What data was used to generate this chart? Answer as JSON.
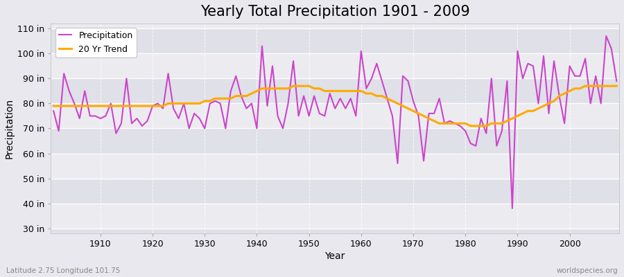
{
  "title": "Yearly Total Precipitation 1901 - 2009",
  "xlabel": "Year",
  "ylabel": "Precipitation",
  "subtitle": "Latitude 2.75 Longitude 101.75",
  "watermark": "worldspecies.org",
  "years": [
    1901,
    1902,
    1903,
    1904,
    1905,
    1906,
    1907,
    1908,
    1909,
    1910,
    1911,
    1912,
    1913,
    1914,
    1915,
    1916,
    1917,
    1918,
    1919,
    1920,
    1921,
    1922,
    1923,
    1924,
    1925,
    1926,
    1927,
    1928,
    1929,
    1930,
    1931,
    1932,
    1933,
    1934,
    1935,
    1936,
    1937,
    1938,
    1939,
    1940,
    1941,
    1942,
    1943,
    1944,
    1945,
    1946,
    1947,
    1948,
    1949,
    1950,
    1951,
    1952,
    1953,
    1954,
    1955,
    1956,
    1957,
    1958,
    1959,
    1960,
    1961,
    1962,
    1963,
    1964,
    1965,
    1966,
    1967,
    1968,
    1969,
    1970,
    1971,
    1972,
    1973,
    1974,
    1975,
    1976,
    1977,
    1978,
    1979,
    1980,
    1981,
    1982,
    1983,
    1984,
    1985,
    1986,
    1987,
    1988,
    1989,
    1990,
    1991,
    1992,
    1993,
    1994,
    1995,
    1996,
    1997,
    1998,
    1999,
    2000,
    2001,
    2002,
    2003,
    2004,
    2005,
    2006,
    2007,
    2008,
    2009
  ],
  "precipitation": [
    77,
    69,
    92,
    85,
    80,
    74,
    85,
    75,
    75,
    74,
    75,
    80,
    68,
    72,
    90,
    72,
    74,
    71,
    73,
    79,
    80,
    78,
    92,
    78,
    74,
    80,
    70,
    76,
    74,
    70,
    80,
    81,
    80,
    70,
    85,
    91,
    83,
    78,
    80,
    70,
    103,
    79,
    95,
    75,
    70,
    80,
    97,
    75,
    83,
    75,
    83,
    76,
    75,
    84,
    78,
    82,
    78,
    82,
    75,
    101,
    86,
    90,
    96,
    89,
    82,
    75,
    56,
    91,
    89,
    81,
    75,
    57,
    76,
    76,
    82,
    72,
    73,
    72,
    71,
    69,
    64,
    63,
    74,
    68,
    90,
    63,
    69,
    89,
    38,
    101,
    90,
    96,
    95,
    80,
    99,
    76,
    97,
    83,
    72,
    95,
    91,
    91,
    98,
    80,
    91,
    80,
    107,
    102,
    89
  ],
  "trend_years": [
    1901,
    1902,
    1903,
    1904,
    1905,
    1906,
    1907,
    1908,
    1909,
    1910,
    1911,
    1912,
    1913,
    1914,
    1915,
    1916,
    1917,
    1918,
    1919,
    1920,
    1921,
    1922,
    1923,
    1924,
    1925,
    1926,
    1927,
    1928,
    1929,
    1930,
    1931,
    1932,
    1933,
    1934,
    1935,
    1936,
    1937,
    1938,
    1939,
    1940,
    1941,
    1942,
    1943,
    1944,
    1945,
    1946,
    1947,
    1948,
    1949,
    1950,
    1951,
    1952,
    1953,
    1954,
    1955,
    1956,
    1957,
    1958,
    1959,
    1960,
    1961,
    1962,
    1963,
    1964,
    1965,
    1966,
    1967,
    1968,
    1969,
    1970,
    1971,
    1972,
    1973,
    1974,
    1975,
    1976,
    1977,
    1978,
    1979,
    1980,
    1981,
    1982,
    1983,
    1984,
    1985,
    1986,
    1987,
    1988,
    1989,
    1990,
    1991,
    1992,
    1993,
    1994,
    1995,
    1996,
    1997,
    1998,
    1999,
    2000,
    2001,
    2002,
    2003,
    2004,
    2005,
    2006,
    2007,
    2008,
    2009
  ],
  "trend": [
    79,
    79,
    79,
    79,
    79,
    79,
    79,
    79,
    79,
    79,
    79,
    79,
    79,
    79,
    79,
    79,
    79,
    79,
    79,
    79,
    79,
    79,
    80,
    80,
    80,
    80,
    80,
    80,
    80,
    81,
    81,
    82,
    82,
    82,
    82,
    83,
    83,
    83,
    84,
    85,
    86,
    86,
    86,
    86,
    86,
    86,
    87,
    87,
    87,
    87,
    86,
    86,
    85,
    85,
    85,
    85,
    85,
    85,
    85,
    85,
    84,
    84,
    83,
    83,
    82,
    81,
    80,
    79,
    78,
    77,
    76,
    75,
    74,
    73,
    72,
    72,
    72,
    72,
    72,
    72,
    71,
    71,
    71,
    71,
    72,
    72,
    72,
    73,
    74,
    75,
    76,
    77,
    77,
    78,
    79,
    80,
    81,
    83,
    84,
    85,
    86,
    86,
    87,
    87,
    87,
    87,
    87,
    87,
    87
  ],
  "precip_color": "#cc44cc",
  "trend_color": "#ffaa00",
  "bg_color": "#e8e8ee",
  "band_color_1": "#e0e0e8",
  "band_color_2": "#ebebf0",
  "ylim": [
    28,
    112
  ],
  "yticks": [
    30,
    40,
    50,
    60,
    70,
    80,
    90,
    100,
    110
  ],
  "ytick_labels": [
    "30 in",
    "40 in",
    "50 in",
    "60 in",
    "70 in",
    "80 in",
    "90 in",
    "100 in",
    "110 in"
  ],
  "xticks": [
    1910,
    1920,
    1930,
    1940,
    1950,
    1960,
    1970,
    1980,
    1990,
    2000
  ],
  "title_fontsize": 15,
  "axis_fontsize": 9,
  "legend_fontsize": 9
}
